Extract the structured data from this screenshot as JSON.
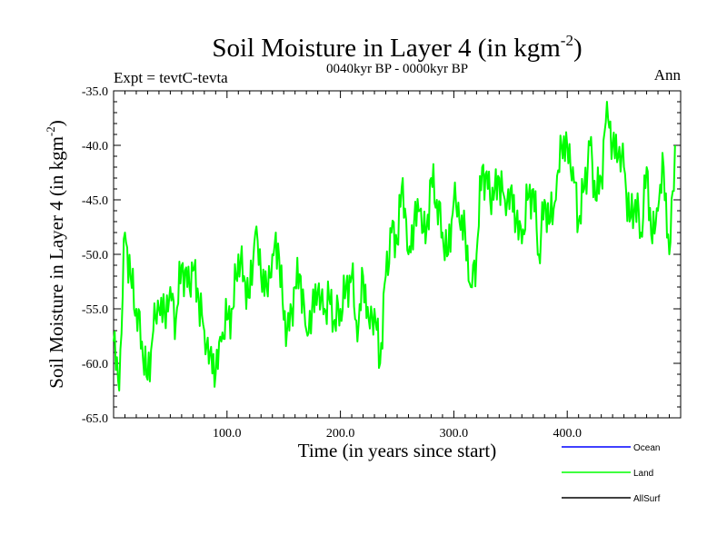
{
  "chart_data": {
    "type": "line",
    "title": "Soil Moisture in Layer 4 (in kgm",
    "title_sup": "-2",
    "title_close": ")",
    "subtitle_left": "Expt = tevtC-tevta",
    "subtitle_center": "0040kyr BP - 0000kyr BP",
    "subtitle_right": "Ann",
    "xlabel": "Time (in years since start)",
    "ylabel": "Soil Moisture in Layer 4 (in kgm",
    "ylabel_sup": "-2",
    "ylabel_close": ")",
    "xlim": [
      0,
      500
    ],
    "ylim": [
      -65,
      -35
    ],
    "x_ticks": [
      100,
      200,
      300,
      400
    ],
    "x_tick_labels": [
      "100.0",
      "200.0",
      "300.0",
      "400.0"
    ],
    "y_ticks": [
      -65,
      -60,
      -55,
      -50,
      -45,
      -40,
      -35
    ],
    "y_tick_labels": [
      "-65.0",
      "-60.0",
      "-55.0",
      "-50.0",
      "-45.0",
      "-40.0",
      "-35.0"
    ],
    "grid": false,
    "legend_position": "bottom-right",
    "legend": [
      {
        "name": "Ocean",
        "color": "#0000ff"
      },
      {
        "name": "Land",
        "color": "#00ff00"
      },
      {
        "name": "AllSurf",
        "color": "#000000"
      }
    ],
    "series": [
      {
        "name": "Land",
        "color": "#00ff00",
        "x": [
          0,
          5,
          10,
          15,
          20,
          25,
          30,
          35,
          40,
          45,
          50,
          55,
          60,
          65,
          70,
          75,
          80,
          85,
          90,
          95,
          100,
          105,
          110,
          115,
          120,
          125,
          130,
          135,
          140,
          145,
          150,
          155,
          160,
          165,
          170,
          175,
          180,
          185,
          190,
          195,
          200,
          205,
          210,
          215,
          220,
          225,
          230,
          235,
          240,
          245,
          250,
          255,
          260,
          265,
          270,
          275,
          280,
          285,
          290,
          295,
          300,
          305,
          310,
          315,
          320,
          325,
          330,
          335,
          340,
          345,
          350,
          355,
          360,
          365,
          370,
          375,
          380,
          385,
          390,
          395,
          400,
          405,
          410,
          415,
          420,
          425,
          430,
          435,
          440,
          445,
          450,
          455,
          460,
          465,
          470,
          475,
          480,
          485,
          490,
          495
        ],
        "values": [
          -58,
          -62.5,
          -48,
          -52,
          -55,
          -58,
          -61.5,
          -57,
          -55,
          -55.5,
          -53,
          -56,
          -51,
          -53,
          -51.5,
          -54,
          -57,
          -59,
          -61,
          -58,
          -56,
          -55,
          -50,
          -52,
          -54,
          -48,
          -52,
          -53,
          -50,
          -49,
          -56,
          -57,
          -53,
          -52,
          -57,
          -55,
          -53.5,
          -55.5,
          -54,
          -56,
          -55,
          -53,
          -52,
          -58,
          -52,
          -56,
          -55,
          -60,
          -52,
          -48,
          -49,
          -43,
          -50,
          -47,
          -46,
          -49,
          -43,
          -45,
          -48,
          -50,
          -45,
          -47,
          -48,
          -53,
          -50,
          -42,
          -44,
          -45,
          -43,
          -45,
          -44,
          -47,
          -49,
          -45,
          -44,
          -50,
          -45,
          -47,
          -45,
          -40,
          -40,
          -42,
          -47,
          -44,
          -40,
          -45,
          -43,
          -36,
          -40,
          -41,
          -42,
          -47,
          -45,
          -48,
          -42,
          -49,
          -46,
          -42,
          -50,
          -40
        ]
      }
    ]
  }
}
